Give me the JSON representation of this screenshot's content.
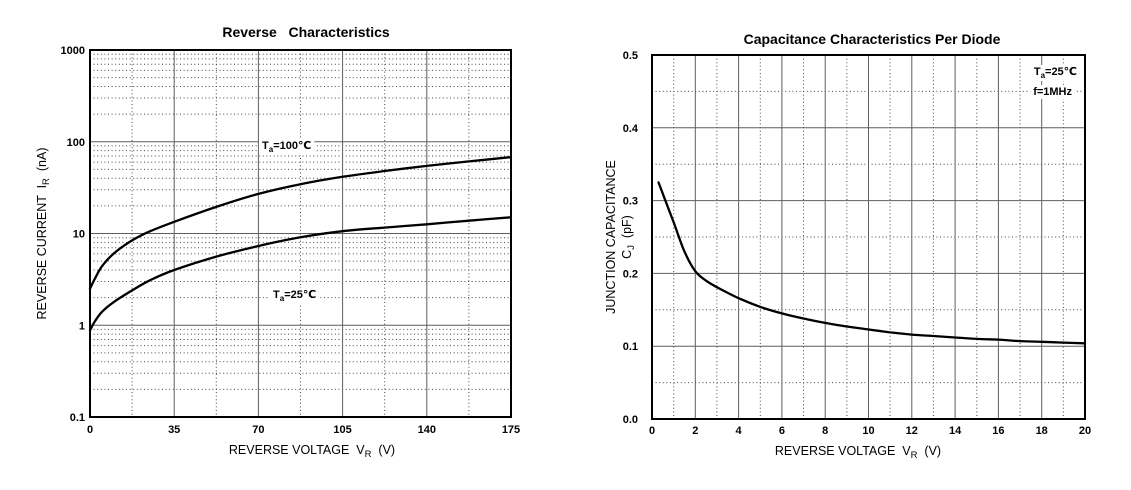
{
  "page": {
    "background": "#ffffff",
    "curve_color": "#000000"
  },
  "chart_data": [
    {
      "type": "line",
      "title": "Reverse   Characteristics",
      "xlabel_text": "REVERSE VOLTAGE VR (V)",
      "xlabel_segments": [
        {
          "t": "REVERSE VOLTAGE  V"
        },
        {
          "t": "R",
          "sub": true
        },
        {
          "t": "  (V)"
        }
      ],
      "ylabel_text": "REVERSE CURRENT IR (nA)",
      "ylabel_segments": [
        [
          {
            "t": "REVERSE CURRENT  I"
          },
          {
            "t": "R",
            "sub": true
          },
          {
            "t": "  (nA)"
          }
        ]
      ],
      "x_axis": {
        "scale": "linear",
        "min": 0,
        "max": 175,
        "tick_values": [
          0,
          35,
          70,
          105,
          140,
          175
        ],
        "tick_labels": [
          "0",
          "35",
          "70",
          "105",
          "140",
          "175"
        ],
        "minor_values": [
          17.5,
          52.5,
          87.5,
          122.5,
          157.5
        ]
      },
      "y_axis": {
        "scale": "log",
        "min": 0.1,
        "max": 1000,
        "tick_values": [
          0.1,
          1,
          10,
          100,
          1000
        ],
        "tick_labels": [
          "0.1",
          "1",
          "10",
          "100",
          "1000"
        ]
      },
      "grid": {
        "major_color": "#5f5f5f",
        "minor_color": "#474747",
        "minor_dash": "1 2.6",
        "border_color": "#000000"
      },
      "series": [
        {
          "id": "ta-100c",
          "name": "Ta=100℃",
          "color": "#000000",
          "x": [
            0,
            2,
            5,
            10,
            17.5,
            25,
            35,
            52.5,
            70,
            87.5,
            105,
            122.5,
            140,
            157.5,
            175
          ],
          "y": [
            2.5,
            3.2,
            4.4,
            6.1,
            8.4,
            10.6,
            13.4,
            19.5,
            27,
            34.5,
            41.5,
            48,
            54.5,
            61,
            68
          ]
        },
        {
          "id": "ta-25c",
          "name": "Ta=25℃",
          "color": "#000000",
          "x": [
            0,
            2,
            5,
            10,
            17.5,
            25,
            35,
            52.5,
            70,
            87.5,
            105,
            122.5,
            140,
            157.5,
            175
          ],
          "y": [
            0.88,
            1.1,
            1.4,
            1.8,
            2.4,
            3.1,
            4.0,
            5.6,
            7.3,
            9.1,
            10.6,
            11.6,
            12.6,
            13.8,
            15
          ]
        }
      ],
      "annotations": [
        {
          "text": "Ta=100℃",
          "segments": [
            {
              "t": "T"
            },
            {
              "t": "a",
              "sub": true
            },
            {
              "t": "=100℃"
            }
          ]
        },
        {
          "text": "Ta=25℃",
          "segments": [
            {
              "t": "T"
            },
            {
              "t": "a",
              "sub": true
            },
            {
              "t": "=25℃"
            }
          ]
        }
      ],
      "legend": "none"
    },
    {
      "type": "line",
      "title": "Capacitance Characteristics Per Diode",
      "xlabel_text": "REVERSE VOLTAGE VR (V)",
      "xlabel_segments": [
        {
          "t": "REVERSE VOLTAGE  V"
        },
        {
          "t": "R",
          "sub": true
        },
        {
          "t": "  (V)"
        }
      ],
      "ylabel_text": "JUNCTION CAPACITANCE CJ (pF)",
      "ylabel_segments": [
        [
          {
            "t": "JUNCTION CAPACITANCE"
          }
        ],
        [
          {
            "t": "C"
          },
          {
            "t": "J",
            "sub": true
          },
          {
            "t": "  (pF)"
          }
        ]
      ],
      "x_axis": {
        "scale": "linear",
        "min": 0,
        "max": 20,
        "tick_values": [
          0,
          2,
          4,
          6,
          8,
          10,
          12,
          14,
          16,
          18,
          20
        ],
        "tick_labels": [
          "0",
          "2",
          "4",
          "6",
          "8",
          "10",
          "12",
          "14",
          "16",
          "18",
          "20"
        ],
        "minor_values": [
          1,
          3,
          5,
          7,
          9,
          11,
          13,
          15,
          17,
          19
        ]
      },
      "y_axis": {
        "scale": "linear",
        "min": 0,
        "max": 0.5,
        "tick_values": [
          0,
          0.1,
          0.2,
          0.3,
          0.4,
          0.5
        ],
        "tick_labels": [
          "0.0",
          "0.1",
          "0.2",
          "0.3",
          "0.4",
          "0.5"
        ],
        "minor_values": [
          0.05,
          0.15,
          0.25,
          0.35,
          0.45
        ]
      },
      "grid": {
        "major_color": "#5f5f5f",
        "minor_color": "#474747",
        "minor_dash": "1 2.6",
        "border_color": "#000000"
      },
      "series": [
        {
          "id": "cj-25c",
          "name": "Ta=25℃ f=1MHz",
          "color": "#000000",
          "x": [
            0.3,
            1,
            1.5,
            2,
            2.5,
            3,
            4,
            5,
            6,
            7,
            8,
            9,
            10,
            11,
            12,
            13,
            14,
            15,
            16,
            17,
            18,
            19,
            20
          ],
          "y": [
            0.325,
            0.27,
            0.23,
            0.203,
            0.19,
            0.181,
            0.166,
            0.154,
            0.145,
            0.138,
            0.132,
            0.127,
            0.123,
            0.119,
            0.116,
            0.114,
            0.112,
            0.11,
            0.109,
            0.107,
            0.106,
            0.105,
            0.104
          ]
        }
      ],
      "annotations": [
        {
          "text": "Ta=25℃",
          "segments": [
            {
              "t": "T"
            },
            {
              "t": "a",
              "sub": true
            },
            {
              "t": "=25℃"
            }
          ]
        },
        {
          "text": "f=1MHz",
          "segments": [
            {
              "t": "f=1MHz"
            }
          ]
        }
      ],
      "legend": "none"
    }
  ]
}
